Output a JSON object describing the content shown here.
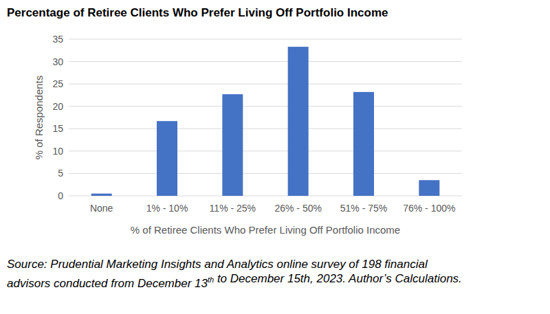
{
  "chart_data": {
    "type": "bar",
    "title": "Percentage of Retiree Clients Who Prefer Living Off Portfolio Income",
    "y_label": "% of Respondents",
    "x_label": "% of Retiree Clients Who Prefer Living Off Portfolio Income",
    "categories": [
      "None",
      "1% - 10%",
      "11% - 25%",
      "26% - 50%",
      "51% - 75%",
      "76% - 100%"
    ],
    "values": [
      0.5,
      16.7,
      22.7,
      33.3,
      23.2,
      3.5
    ],
    "color": "#4472c4",
    "ylim": [
      0,
      35
    ],
    "yticks": [
      0,
      5,
      10,
      15,
      20,
      25,
      30,
      35
    ],
    "grid": true,
    "source": [
      "Source: Prudential Marketing Insights and Analytics online survey of 198 financial",
      "advisors conducted from December 13th to December 15th, 2023. Author’s Calculations."
    ]
  }
}
